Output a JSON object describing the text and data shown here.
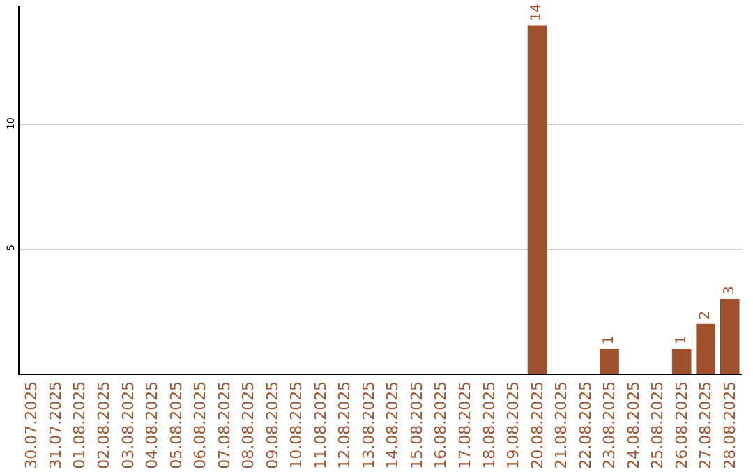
{
  "chart_data": {
    "type": "bar",
    "categories": [
      "30.07.2025",
      "31.07.2025",
      "01.08.2025",
      "02.08.2025",
      "03.08.2025",
      "04.08.2025",
      "05.08.2025",
      "06.08.2025",
      "07.08.2025",
      "08.08.2025",
      "09.08.2025",
      "10.08.2025",
      "11.08.2025",
      "12.08.2025",
      "13.08.2025",
      "14.08.2025",
      "15.08.2025",
      "16.08.2025",
      "17.08.2025",
      "18.08.2025",
      "19.08.2025",
      "20.08.2025",
      "21.08.2025",
      "22.08.2025",
      "23.08.2025",
      "24.08.2025",
      "25.08.2025",
      "26.08.2025",
      "27.08.2025",
      "28.08.2025"
    ],
    "values": [
      0,
      0,
      0,
      0,
      0,
      0,
      0,
      0,
      0,
      0,
      0,
      0,
      0,
      0,
      0,
      0,
      0,
      0,
      0,
      0,
      0,
      14,
      0,
      0,
      1,
      0,
      0,
      1,
      2,
      3
    ],
    "value_labels": [
      null,
      null,
      null,
      null,
      null,
      null,
      null,
      null,
      null,
      null,
      null,
      null,
      null,
      null,
      null,
      null,
      null,
      null,
      null,
      null,
      null,
      "14",
      null,
      null,
      "1",
      null,
      null,
      "1",
      "2",
      "3"
    ],
    "color": "#a0522d",
    "ylim": [
      0,
      14.8
    ],
    "yticks": [
      5,
      10
    ],
    "grid": "y"
  }
}
